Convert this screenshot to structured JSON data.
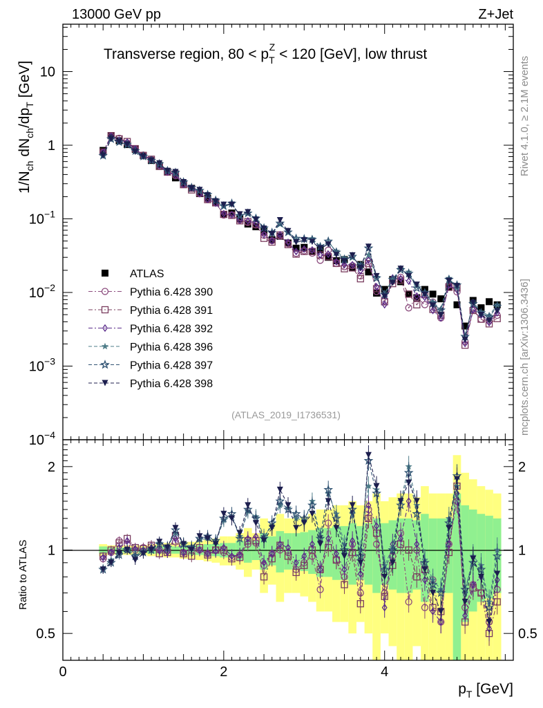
{
  "chart_data": {
    "type": "scatter",
    "header_left": "13000 GeV pp",
    "header_right": "Z+Jet",
    "title": {
      "pre": "Transverse region, 80 < p",
      "sub": "T",
      "sup": "Z",
      "post": " < 120 [GeV], low thrust"
    },
    "ylabel": {
      "a": "1/N",
      "a_sub": "ch",
      "b": " dN",
      "b_sub": "ch",
      "c": "/dp",
      "c_sub": "T",
      "d": " [GeV]"
    },
    "ratio_ylabel": "Ratio to ATLAS",
    "xlabel": {
      "main": "p",
      "sub": "T",
      "unit": " [GeV]"
    },
    "analysis_id": "(ATLAS_2019_I1736531)",
    "side_text_top": "Rivet 4.1.0, ≥ 2.1M events",
    "side_text_bottom": "mcplots.cern.ch [arXiv:1306.3436]",
    "xlim": [
      0,
      5.6
    ],
    "ylim": [
      0.0001,
      44
    ],
    "ratio_ylim": [
      0.4,
      2.5
    ],
    "x_ticks": [
      {
        "v": 0,
        "label": "0"
      },
      {
        "v": 2,
        "label": "2"
      },
      {
        "v": 4,
        "label": "4"
      }
    ],
    "y_ticks": [
      {
        "v": 10,
        "base": "10",
        "exp": ""
      },
      {
        "v": 1,
        "base": "1",
        "exp": ""
      },
      {
        "v": 0.1,
        "base": "10",
        "exp": "−1"
      },
      {
        "v": 0.01,
        "base": "10",
        "exp": "−2"
      },
      {
        "v": 0.001,
        "base": "10",
        "exp": "−3"
      },
      {
        "v": 0.0001,
        "base": "10",
        "exp": "−4"
      }
    ],
    "ratio_ticks": [
      {
        "v": 0.5,
        "label": "0.5"
      },
      {
        "v": 1,
        "label": "1"
      },
      {
        "v": 2,
        "label": "2"
      }
    ],
    "x": [
      0.5,
      0.6,
      0.7,
      0.8,
      0.9,
      1.0,
      1.1,
      1.2,
      1.3,
      1.4,
      1.5,
      1.6,
      1.7,
      1.8,
      1.9,
      2.0,
      2.1,
      2.2,
      2.3,
      2.4,
      2.5,
      2.6,
      2.7,
      2.8,
      2.9,
      3.0,
      3.1,
      3.2,
      3.3,
      3.4,
      3.5,
      3.6,
      3.7,
      3.8,
      3.9,
      4.0,
      4.1,
      4.2,
      4.3,
      4.4,
      4.5,
      4.6,
      4.7,
      4.8,
      4.9,
      5.0,
      5.1,
      5.2,
      5.3,
      5.4
    ],
    "data": {
      "name": "ATLAS",
      "color": "#000000",
      "marker": "square-filled",
      "values": [
        0.85,
        1.35,
        1.15,
        1.02,
        0.88,
        0.72,
        0.62,
        0.53,
        0.44,
        0.36,
        0.3,
        0.26,
        0.22,
        0.19,
        0.165,
        0.115,
        0.12,
        0.1,
        0.085,
        0.078,
        0.068,
        0.052,
        0.058,
        0.047,
        0.04,
        0.041,
        0.036,
        0.038,
        0.03,
        0.027,
        0.028,
        0.022,
        0.024,
        0.019,
        0.0098,
        0.011,
        0.015,
        0.014,
        0.0095,
        0.0085,
        0.011,
        0.0095,
        0.0082,
        0.012,
        0.0068,
        0.0035,
        0.0078,
        0.0062,
        0.0075,
        0.0068
      ],
      "band_outer": [
        0.05,
        0.04,
        0.04,
        0.04,
        0.04,
        0.04,
        0.05,
        0.05,
        0.06,
        0.06,
        0.07,
        0.07,
        0.08,
        0.09,
        0.1,
        0.12,
        0.12,
        0.15,
        0.2,
        0.15,
        0.3,
        0.25,
        0.35,
        0.3,
        0.3,
        0.32,
        0.35,
        0.4,
        0.4,
        0.45,
        0.45,
        0.5,
        0.45,
        0.5,
        0.6,
        0.5,
        0.55,
        0.6,
        0.6,
        0.55,
        0.7,
        0.6,
        0.6,
        0.6,
        1.2,
        0.9,
        0.8,
        0.7,
        0.65,
        0.6
      ],
      "band_inner": [
        0.03,
        0.02,
        0.02,
        0.02,
        0.02,
        0.02,
        0.03,
        0.03,
        0.03,
        0.03,
        0.04,
        0.04,
        0.04,
        0.05,
        0.05,
        0.06,
        0.06,
        0.08,
        0.1,
        0.08,
        0.15,
        0.12,
        0.17,
        0.15,
        0.15,
        0.16,
        0.18,
        0.2,
        0.2,
        0.22,
        0.22,
        0.25,
        0.22,
        0.25,
        0.3,
        0.25,
        0.28,
        0.3,
        0.3,
        0.28,
        0.35,
        0.3,
        0.3,
        0.3,
        0.6,
        0.45,
        0.4,
        0.35,
        0.33,
        0.3
      ],
      "band_outer_color": "#ffff80",
      "band_inner_color": "#90f090"
    },
    "series": [
      {
        "name": "Pythia 6.428 390",
        "color": "#8a4a7c",
        "marker": "circle-open",
        "line": "dashdot",
        "ratio": [
          0.93,
          0.98,
          1.08,
          1.05,
          1.0,
          1.02,
          1.03,
          1.0,
          1.0,
          1.07,
          0.98,
          1.0,
          1.0,
          0.97,
          1.0,
          0.98,
          0.94,
          0.96,
          1.05,
          1.06,
          0.88,
          0.97,
          1.0,
          0.98,
          0.85,
          0.9,
          0.95,
          0.72,
          1.25,
          0.92,
          0.8,
          1.05,
          0.7,
          1.4,
          1.05,
          0.7,
          0.95,
          1.15,
          0.65,
          1.0,
          0.62,
          0.78,
          0.55,
          1.05,
          1.5,
          0.62,
          0.75,
          0.7,
          0.55,
          0.72
        ]
      },
      {
        "name": "Pythia 6.428 391",
        "color": "#7a3c5e",
        "marker": "square-open",
        "line": "dashdot",
        "ratio": [
          0.95,
          1.0,
          1.06,
          1.1,
          1.02,
          1.01,
          1.04,
          0.97,
          0.98,
          1.13,
          0.97,
          0.95,
          1.02,
          0.96,
          1.0,
          1.0,
          0.93,
          0.94,
          1.08,
          1.08,
          0.8,
          0.93,
          1.04,
          0.95,
          0.83,
          0.88,
          1.0,
          0.85,
          1.02,
          0.92,
          0.75,
          0.98,
          0.64,
          1.3,
          1.15,
          0.68,
          0.88,
          1.05,
          1.0,
          0.8,
          0.85,
          0.62,
          0.6,
          0.98,
          1.7,
          0.55,
          0.73,
          0.7,
          0.5,
          0.65
        ]
      },
      {
        "name": "Pythia 6.428 392",
        "color": "#5a2a8a",
        "marker": "diamond-open",
        "line": "dashdot",
        "ratio": [
          0.94,
          0.98,
          1.02,
          1.08,
          1.01,
          1.0,
          1.02,
          1.0,
          0.98,
          1.1,
          0.98,
          1.02,
          1.0,
          0.97,
          0.99,
          1.02,
          0.95,
          0.96,
          1.1,
          1.12,
          0.9,
          0.97,
          1.05,
          1.02,
          0.9,
          0.95,
          1.05,
          0.85,
          1.1,
          0.97,
          0.85,
          1.08,
          0.82,
          1.45,
          1.22,
          0.62,
          1.05,
          1.1,
          1.5,
          1.05,
          0.78,
          0.6,
          0.55,
          1.05,
          1.6,
          0.58,
          0.75,
          0.8,
          0.52,
          0.78
        ]
      },
      {
        "name": "Pythia 6.428 396",
        "color": "#4e7c88",
        "marker": "star-filled",
        "line": "dashed",
        "ratio": [
          0.86,
          0.92,
          0.97,
          1.01,
          0.96,
          0.99,
          1.01,
          1.06,
          1.03,
          1.15,
          1.06,
          1.03,
          1.09,
          1.1,
          1.07,
          1.28,
          1.32,
          1.12,
          1.38,
          1.32,
          1.12,
          1.22,
          1.45,
          1.42,
          1.3,
          1.28,
          1.5,
          1.12,
          1.6,
          1.35,
          1.05,
          1.35,
          1.0,
          1.7,
          1.65,
          0.88,
          1.02,
          1.5,
          2.0,
          1.45,
          0.92,
          0.78,
          0.72,
          1.3,
          1.7,
          0.7,
          0.95,
          0.88,
          0.65,
          1.0
        ]
      },
      {
        "name": "Pythia 6.428 397",
        "color": "#2f5272",
        "marker": "star-open",
        "line": "dashed",
        "ratio": [
          0.85,
          0.9,
          0.96,
          1.0,
          0.95,
          0.98,
          1.0,
          1.05,
          1.02,
          1.18,
          1.05,
          1.02,
          1.1,
          1.12,
          1.08,
          1.3,
          1.35,
          1.1,
          1.4,
          1.3,
          1.1,
          1.25,
          1.5,
          1.4,
          1.35,
          1.3,
          1.45,
          1.1,
          1.65,
          1.3,
          1.0,
          1.4,
          0.95,
          2.1,
          1.6,
          0.85,
          1.0,
          1.45,
          1.9,
          1.35,
          0.9,
          0.75,
          0.7,
          1.25,
          1.85,
          0.72,
          0.9,
          0.85,
          0.62,
          0.95
        ]
      },
      {
        "name": "Pythia 6.428 398",
        "color": "#1c1e4e",
        "marker": "triangle-down-filled",
        "line": "dashed",
        "ratio": [
          0.85,
          0.9,
          0.97,
          1.0,
          0.92,
          0.97,
          1.0,
          1.07,
          1.02,
          1.2,
          1.05,
          1.0,
          1.12,
          1.1,
          1.05,
          1.35,
          1.3,
          1.15,
          1.45,
          1.25,
          1.08,
          1.2,
          1.65,
          1.45,
          1.2,
          1.25,
          1.35,
          1.05,
          1.5,
          1.2,
          0.95,
          1.45,
          0.9,
          2.2,
          1.7,
          0.8,
          0.9,
          1.5,
          1.75,
          1.5,
          0.85,
          0.7,
          0.6,
          1.2,
          1.8,
          0.65,
          0.93,
          0.8,
          0.55,
          0.82
        ]
      }
    ]
  }
}
